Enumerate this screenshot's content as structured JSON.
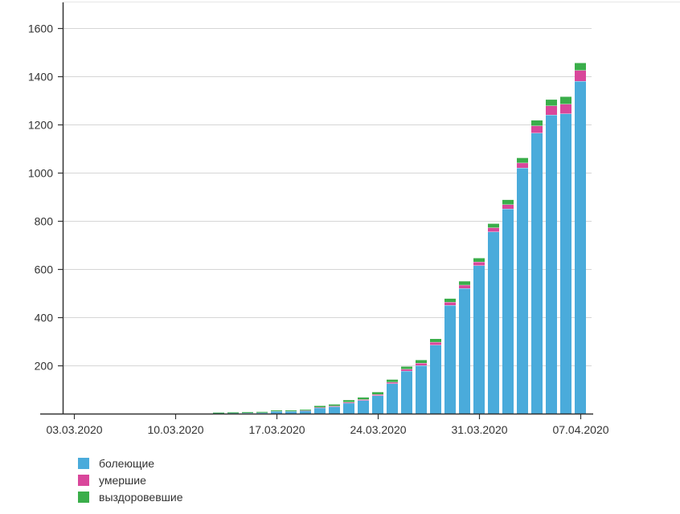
{
  "chart_data": {
    "type": "bar",
    "stacked": true,
    "title": "",
    "xlabel": "",
    "ylabel": "",
    "ylim": [
      0,
      1700
    ],
    "y_ticks": [
      200,
      400,
      600,
      800,
      1000,
      1200,
      1400,
      1600
    ],
    "x_ticks": [
      "03.03.2020",
      "10.03.2020",
      "17.03.2020",
      "24.03.2020",
      "31.03.2020",
      "07.04.2020"
    ],
    "grid": true,
    "legend_position": "bottom-left",
    "categories": [
      "03.03.2020",
      "04.03.2020",
      "05.03.2020",
      "06.03.2020",
      "07.03.2020",
      "08.03.2020",
      "09.03.2020",
      "10.03.2020",
      "11.03.2020",
      "12.03.2020",
      "13.03.2020",
      "14.03.2020",
      "15.03.2020",
      "16.03.2020",
      "17.03.2020",
      "18.03.2020",
      "19.03.2020",
      "20.03.2020",
      "21.03.2020",
      "22.03.2020",
      "23.03.2020",
      "24.03.2020",
      "25.03.2020",
      "26.03.2020",
      "27.03.2020",
      "28.03.2020",
      "29.03.2020",
      "30.03.2020",
      "31.03.2020",
      "01.04.2020",
      "02.04.2020",
      "03.04.2020",
      "04.04.2020",
      "05.04.2020",
      "06.04.2020",
      "07.04.2020"
    ],
    "series": [
      {
        "name": "болеющие",
        "color": "#4aabdb",
        "values": [
          0,
          0,
          0,
          0,
          0,
          0,
          0,
          0,
          0,
          0,
          1,
          2,
          3,
          4,
          10,
          10,
          12,
          24,
          29,
          44,
          55,
          75,
          125,
          177,
          200,
          285,
          450,
          520,
          615,
          755,
          850,
          1020,
          1165,
          1240,
          1245,
          1380
        ]
      },
      {
        "name": "умершие",
        "color": "#d9479b",
        "values": [
          0,
          0,
          0,
          0,
          0,
          0,
          0,
          0,
          0,
          0,
          0,
          0,
          0,
          0,
          0,
          0,
          1,
          2,
          3,
          4,
          4,
          5,
          6,
          8,
          10,
          12,
          13,
          14,
          15,
          17,
          18,
          21,
          30,
          38,
          40,
          45
        ]
      },
      {
        "name": "выздоровевшие",
        "color": "#3aae4a",
        "values": [
          0,
          0,
          0,
          0,
          0,
          0,
          0,
          0,
          0,
          0,
          1,
          1,
          1,
          1,
          2,
          3,
          3,
          6,
          6,
          8,
          8,
          9,
          10,
          10,
          12,
          13,
          14,
          15,
          15,
          16,
          19,
          20,
          22,
          25,
          30,
          30
        ]
      }
    ]
  }
}
